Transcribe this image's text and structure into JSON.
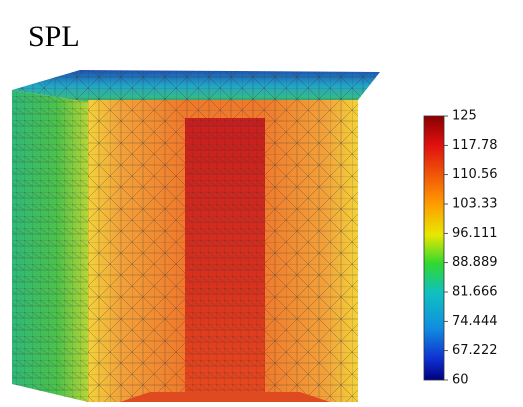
{
  "title": "SPL",
  "colorbar": {
    "range": [
      60,
      125
    ],
    "ticks": [
      125,
      117.78,
      110.56,
      103.33,
      96.111,
      88.889,
      81.666,
      74.444,
      67.222,
      60
    ]
  }
}
